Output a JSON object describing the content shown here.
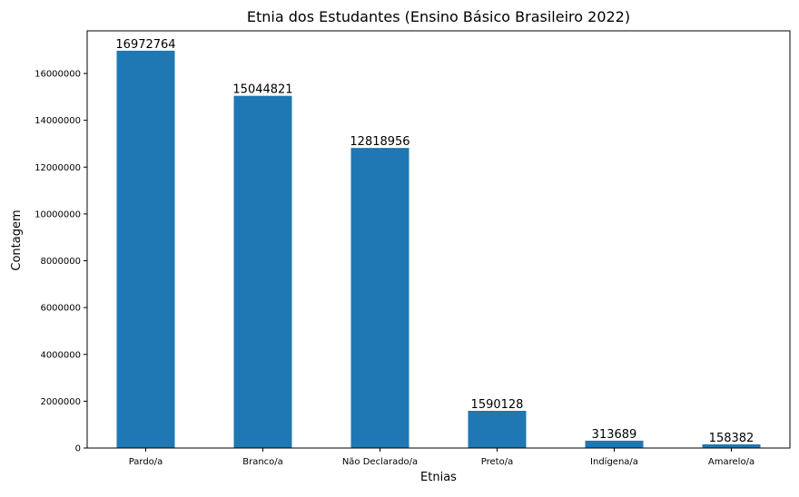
{
  "chart_data": {
    "type": "bar",
    "title": "Etnia dos Estudantes (Ensino Básico Brasileiro 2022)",
    "xlabel": "Etnias",
    "ylabel": "Contagem",
    "categories": [
      "Pardo/a",
      "Branco/a",
      "Não Declarado/a",
      "Preto/a",
      "Indígena/a",
      "Amarelo/a"
    ],
    "values": [
      16972764,
      15044821,
      12818956,
      1590128,
      313689,
      158382
    ],
    "data_labels": [
      "16972764",
      "15044821",
      "12818956",
      "1590128",
      "313689",
      "158382"
    ],
    "ylim": [
      0,
      17821402
    ],
    "yticks": [
      0,
      2000000,
      4000000,
      6000000,
      8000000,
      10000000,
      12000000,
      14000000,
      16000000
    ],
    "ytick_labels": [
      "0",
      "2000000",
      "4000000",
      "6000000",
      "8000000",
      "10000000",
      "12000000",
      "14000000",
      "16000000"
    ],
    "grid": false,
    "legend": "none",
    "bar_color": "#1f77b4"
  }
}
